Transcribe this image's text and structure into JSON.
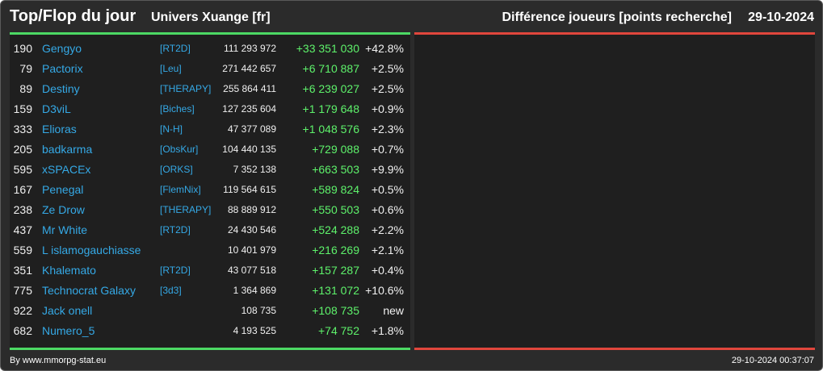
{
  "header": {
    "title": "Top/Flop du jour",
    "universe": "Univers Xuange [fr]",
    "metric": "Différence joueurs [points recherche]",
    "date": "29-10-2024"
  },
  "colors": {
    "background": "#2b2b2b",
    "panel": "#1f1f1f",
    "top_accent": "#4cd964",
    "flop_accent": "#e0463c",
    "name_link": "#35a9e6",
    "gain": "#5ef26b"
  },
  "top_rows": [
    {
      "rank": "190",
      "name": "Gengyo",
      "alliance": "[RT2D]",
      "points": "111 293 972",
      "diff": "+33 351 030",
      "pct": "+42.8%"
    },
    {
      "rank": "79",
      "name": "Pactorix",
      "alliance": "[Leu]",
      "points": "271 442 657",
      "diff": "+6 710 887",
      "pct": "+2.5%"
    },
    {
      "rank": "89",
      "name": "Destiny",
      "alliance": "[THERAPY]",
      "points": "255 864 411",
      "diff": "+6 239 027",
      "pct": "+2.5%"
    },
    {
      "rank": "159",
      "name": "D3viL",
      "alliance": "[Biches]",
      "points": "127 235 604",
      "diff": "+1 179 648",
      "pct": "+0.9%"
    },
    {
      "rank": "333",
      "name": "Elioras",
      "alliance": "[N-H]",
      "points": "47 377 089",
      "diff": "+1 048 576",
      "pct": "+2.3%"
    },
    {
      "rank": "205",
      "name": "badkarma",
      "alliance": "[ObsKur]",
      "points": "104 440 135",
      "diff": "+729 088",
      "pct": "+0.7%"
    },
    {
      "rank": "595",
      "name": "xSPACEx",
      "alliance": "[ORKS]",
      "points": "7 352 138",
      "diff": "+663 503",
      "pct": "+9.9%"
    },
    {
      "rank": "167",
      "name": "Penegal",
      "alliance": "[FlemNix]",
      "points": "119 564 615",
      "diff": "+589 824",
      "pct": "+0.5%"
    },
    {
      "rank": "238",
      "name": "Ze Drow",
      "alliance": "[THERAPY]",
      "points": "88 889 912",
      "diff": "+550 503",
      "pct": "+0.6%"
    },
    {
      "rank": "437",
      "name": "Mr White",
      "alliance": "[RT2D]",
      "points": "24 430 546",
      "diff": "+524 288",
      "pct": "+2.2%"
    },
    {
      "rank": "559",
      "name": "L islamogauchiasse",
      "alliance": "",
      "points": "10 401 979",
      "diff": "+216 269",
      "pct": "+2.1%"
    },
    {
      "rank": "351",
      "name": "Khalemato",
      "alliance": "[RT2D]",
      "points": "43 077 518",
      "diff": "+157 287",
      "pct": "+0.4%"
    },
    {
      "rank": "775",
      "name": "Technocrat Galaxy",
      "alliance": "[3d3]",
      "points": "1 364 869",
      "diff": "+131 072",
      "pct": "+10.6%"
    },
    {
      "rank": "922",
      "name": "Jack onell",
      "alliance": "",
      "points": "108 735",
      "diff": "+108 735",
      "pct": "new"
    },
    {
      "rank": "682",
      "name": "Numero_5",
      "alliance": "",
      "points": "4 193 525",
      "diff": "+74 752",
      "pct": "+1.8%"
    }
  ],
  "flop_rows": [],
  "footer": {
    "credit": "By www.mmorpg-stat.eu",
    "timestamp": "29-10-2024 00:37:07"
  }
}
